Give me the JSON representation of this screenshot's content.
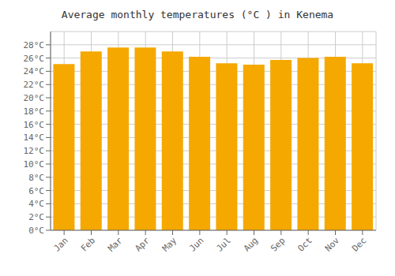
{
  "chart_data": {
    "type": "bar",
    "title": "Average monthly temperatures (°C ) in Kenema",
    "categories": [
      "Jan",
      "Feb",
      "Mar",
      "Apr",
      "May",
      "Jun",
      "Jul",
      "Aug",
      "Sep",
      "Oct",
      "Nov",
      "Dec"
    ],
    "values": [
      25.1,
      27.0,
      27.6,
      27.6,
      27.0,
      26.2,
      25.2,
      25.0,
      25.7,
      26.0,
      26.2,
      25.2
    ],
    "color": "#F5A800",
    "ylim": [
      0,
      30
    ],
    "yticks": [
      {
        "value": 0,
        "label": "0°C"
      },
      {
        "value": 2,
        "label": "2°C"
      },
      {
        "value": 4,
        "label": "4°C"
      },
      {
        "value": 6,
        "label": "6°C"
      },
      {
        "value": 8,
        "label": "8°C"
      },
      {
        "value": 10,
        "label": "10°C"
      },
      {
        "value": 12,
        "label": "12°C"
      },
      {
        "value": 14,
        "label": "14°C"
      },
      {
        "value": 16,
        "label": "16°C"
      },
      {
        "value": 18,
        "label": "18°C"
      },
      {
        "value": 20,
        "label": "20°C"
      },
      {
        "value": 22,
        "label": "22°C"
      },
      {
        "value": 24,
        "label": "24°C"
      },
      {
        "value": 26,
        "label": "26°C"
      },
      {
        "value": 28,
        "label": "28°C"
      }
    ],
    "grid": true
  }
}
